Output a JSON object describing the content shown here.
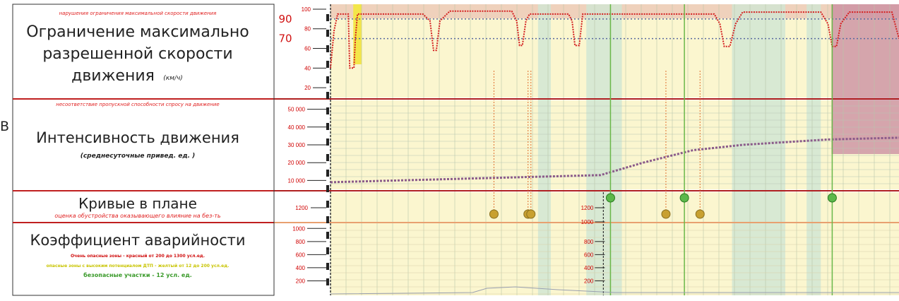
{
  "stray_glyph": "В",
  "panels": {
    "speed": {
      "note": "нарушения ограничения максимальной скорости движения",
      "title_lines": [
        "Ограничение максимально",
        "разрешенной скорости"
      ],
      "title_last": "движения",
      "unit": "(км/ч)",
      "limit_labels": [
        "90",
        "70"
      ]
    },
    "traffic": {
      "note": "несоответствие пропускной способности спросу на движение",
      "title": "Интенсивность движения",
      "subtitle": "(среднесуточные привед. ед. )"
    },
    "curves": {
      "title": "Кривые в плане",
      "subtitle": "оценка обустройства оказывающего влияние на без-ть"
    },
    "accidents": {
      "title": "Коэффициент аварийности",
      "legend": [
        {
          "text": "Очень опасные зоны - красный от 200 до 1300 усл.ед.",
          "color": "#d01010"
        },
        {
          "text": "опасные зоны с высоким потенциалом ДТП - желтый от 12 до 200 усл.ед.",
          "color": "#c8c400"
        },
        {
          "text": "безопасные участки - 12 усл. ед.",
          "color": "#3a9a2a"
        }
      ]
    }
  },
  "chart_data": [
    {
      "type": "line",
      "y_ticks": [
        "100",
        "80",
        "60",
        "40",
        "20"
      ],
      "ylim": [
        10,
        105
      ],
      "limit_lines": [
        90,
        70
      ],
      "speed_profile": [
        [
          0,
          40
        ],
        [
          5,
          78
        ],
        [
          10,
          95
        ],
        [
          25,
          95
        ],
        [
          27,
          40
        ],
        [
          33,
          40
        ],
        [
          35,
          70
        ],
        [
          38,
          95
        ],
        [
          130,
          95
        ],
        [
          140,
          88
        ],
        [
          145,
          58
        ],
        [
          149,
          58
        ],
        [
          154,
          88
        ],
        [
          168,
          98
        ],
        [
          255,
          98
        ],
        [
          262,
          88
        ],
        [
          266,
          63
        ],
        [
          270,
          63
        ],
        [
          275,
          88
        ],
        [
          280,
          95
        ],
        [
          335,
          95
        ],
        [
          340,
          88
        ],
        [
          344,
          63
        ],
        [
          350,
          63
        ],
        [
          355,
          95
        ],
        [
          540,
          95
        ],
        [
          548,
          85
        ],
        [
          554,
          62
        ],
        [
          562,
          62
        ],
        [
          570,
          85
        ],
        [
          580,
          97
        ],
        [
          690,
          97
        ],
        [
          700,
          85
        ],
        [
          706,
          62
        ],
        [
          712,
          62
        ],
        [
          718,
          85
        ],
        [
          730,
          97
        ],
        [
          790,
          97
        ],
        [
          800,
          70
        ]
      ]
    },
    {
      "type": "line",
      "y_ticks": [
        "50 000",
        "40 000",
        "30 000",
        "20 000",
        "10 000"
      ],
      "ylim": [
        5000,
        55000
      ],
      "traffic_profile": [
        [
          0,
          9000
        ],
        [
          380,
          13000
        ],
        [
          440,
          20000
        ],
        [
          510,
          27000
        ],
        [
          580,
          30000
        ],
        [
          700,
          33000
        ],
        [
          800,
          34000
        ]
      ]
    },
    {
      "type": "scatter",
      "y_ticks": [
        "1200"
      ],
      "secondary_ticks": [
        "1200",
        "1000"
      ],
      "ylim": [
        900,
        1300
      ],
      "points": [
        {
          "x": 230,
          "y": 1100,
          "stem_from_top": true
        },
        {
          "x": 278,
          "y": 1100,
          "stem_from_top": true
        },
        {
          "x": 282,
          "y": 1100,
          "stem_from_top": true
        },
        {
          "x": 472,
          "y": 1100,
          "stem_from_top": true
        },
        {
          "x": 520,
          "y": 1100,
          "stem_from_top": true
        },
        {
          "x": 394,
          "y": 1290,
          "stem_from_top": false
        },
        {
          "x": 498,
          "y": 1290,
          "stem_from_top": false
        },
        {
          "x": 706,
          "y": 1290,
          "stem_from_top": false
        }
      ]
    },
    {
      "type": "line",
      "y_ticks": [
        "1000",
        "800",
        "600",
        "400",
        "200"
      ],
      "secondary_ticks": [
        "800",
        "600",
        "400",
        "200"
      ],
      "ylim": [
        0,
        1100
      ]
    }
  ]
}
